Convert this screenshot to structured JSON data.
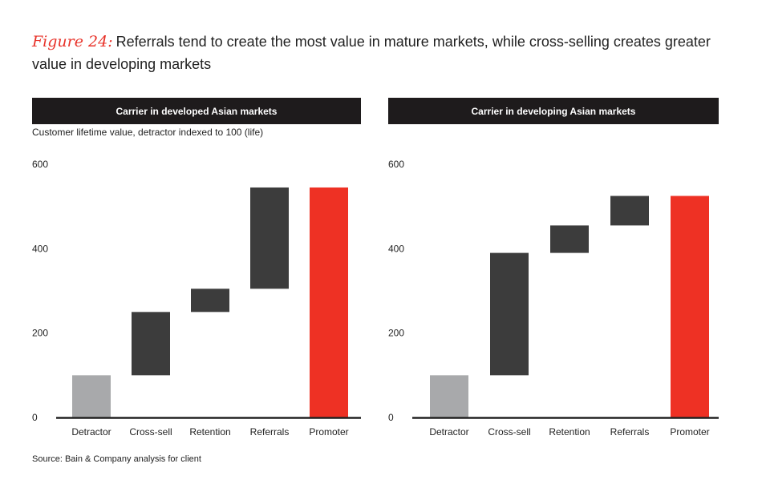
{
  "title": {
    "figure_label": "Figure 24:",
    "text": "Referrals tend to create the most value in mature markets, while cross-selling creates greater value in developing markets"
  },
  "subtitle": "Customer lifetime value, detractor indexed to 100 (life)",
  "source": "Source: Bain & Company analysis for client",
  "colors": {
    "header_bg": "#1e1b1c",
    "start_bar": "#a8a9ab",
    "step_bar": "#3c3c3c",
    "total_bar": "#ee3124",
    "title_accent": "#e8332a"
  },
  "chart_data": [
    {
      "type": "bar",
      "subtype": "waterfall",
      "title": "Carrier in developed Asian markets",
      "ylabel": "Customer lifetime value, detractor indexed to 100 (life)",
      "ylim": [
        0,
        600
      ],
      "yticks": [
        "0",
        "200",
        "400",
        "600"
      ],
      "categories": [
        "Detractor",
        "Cross-sell",
        "Retention",
        "Referrals",
        "Promoter"
      ],
      "bars": [
        {
          "label": "Detractor",
          "base": 0,
          "top": 100,
          "kind": "start"
        },
        {
          "label": "Cross-sell",
          "base": 100,
          "top": 250,
          "kind": "step"
        },
        {
          "label": "Retention",
          "base": 250,
          "top": 305,
          "kind": "step"
        },
        {
          "label": "Referrals",
          "base": 305,
          "top": 545,
          "kind": "step"
        },
        {
          "label": "Promoter",
          "base": 0,
          "top": 545,
          "kind": "total"
        }
      ],
      "grid": false
    },
    {
      "type": "bar",
      "subtype": "waterfall",
      "title": "Carrier in developing Asian markets",
      "ylabel": "",
      "ylim": [
        0,
        600
      ],
      "yticks": [
        "0",
        "200",
        "400",
        "600"
      ],
      "categories": [
        "Detractor",
        "Cross-sell",
        "Retention",
        "Referrals",
        "Promoter"
      ],
      "bars": [
        {
          "label": "Detractor",
          "base": 0,
          "top": 100,
          "kind": "start"
        },
        {
          "label": "Cross-sell",
          "base": 100,
          "top": 390,
          "kind": "step"
        },
        {
          "label": "Retention",
          "base": 390,
          "top": 455,
          "kind": "step"
        },
        {
          "label": "Referrals",
          "base": 455,
          "top": 525,
          "kind": "step"
        },
        {
          "label": "Promoter",
          "base": 0,
          "top": 525,
          "kind": "total"
        }
      ],
      "grid": false
    }
  ]
}
